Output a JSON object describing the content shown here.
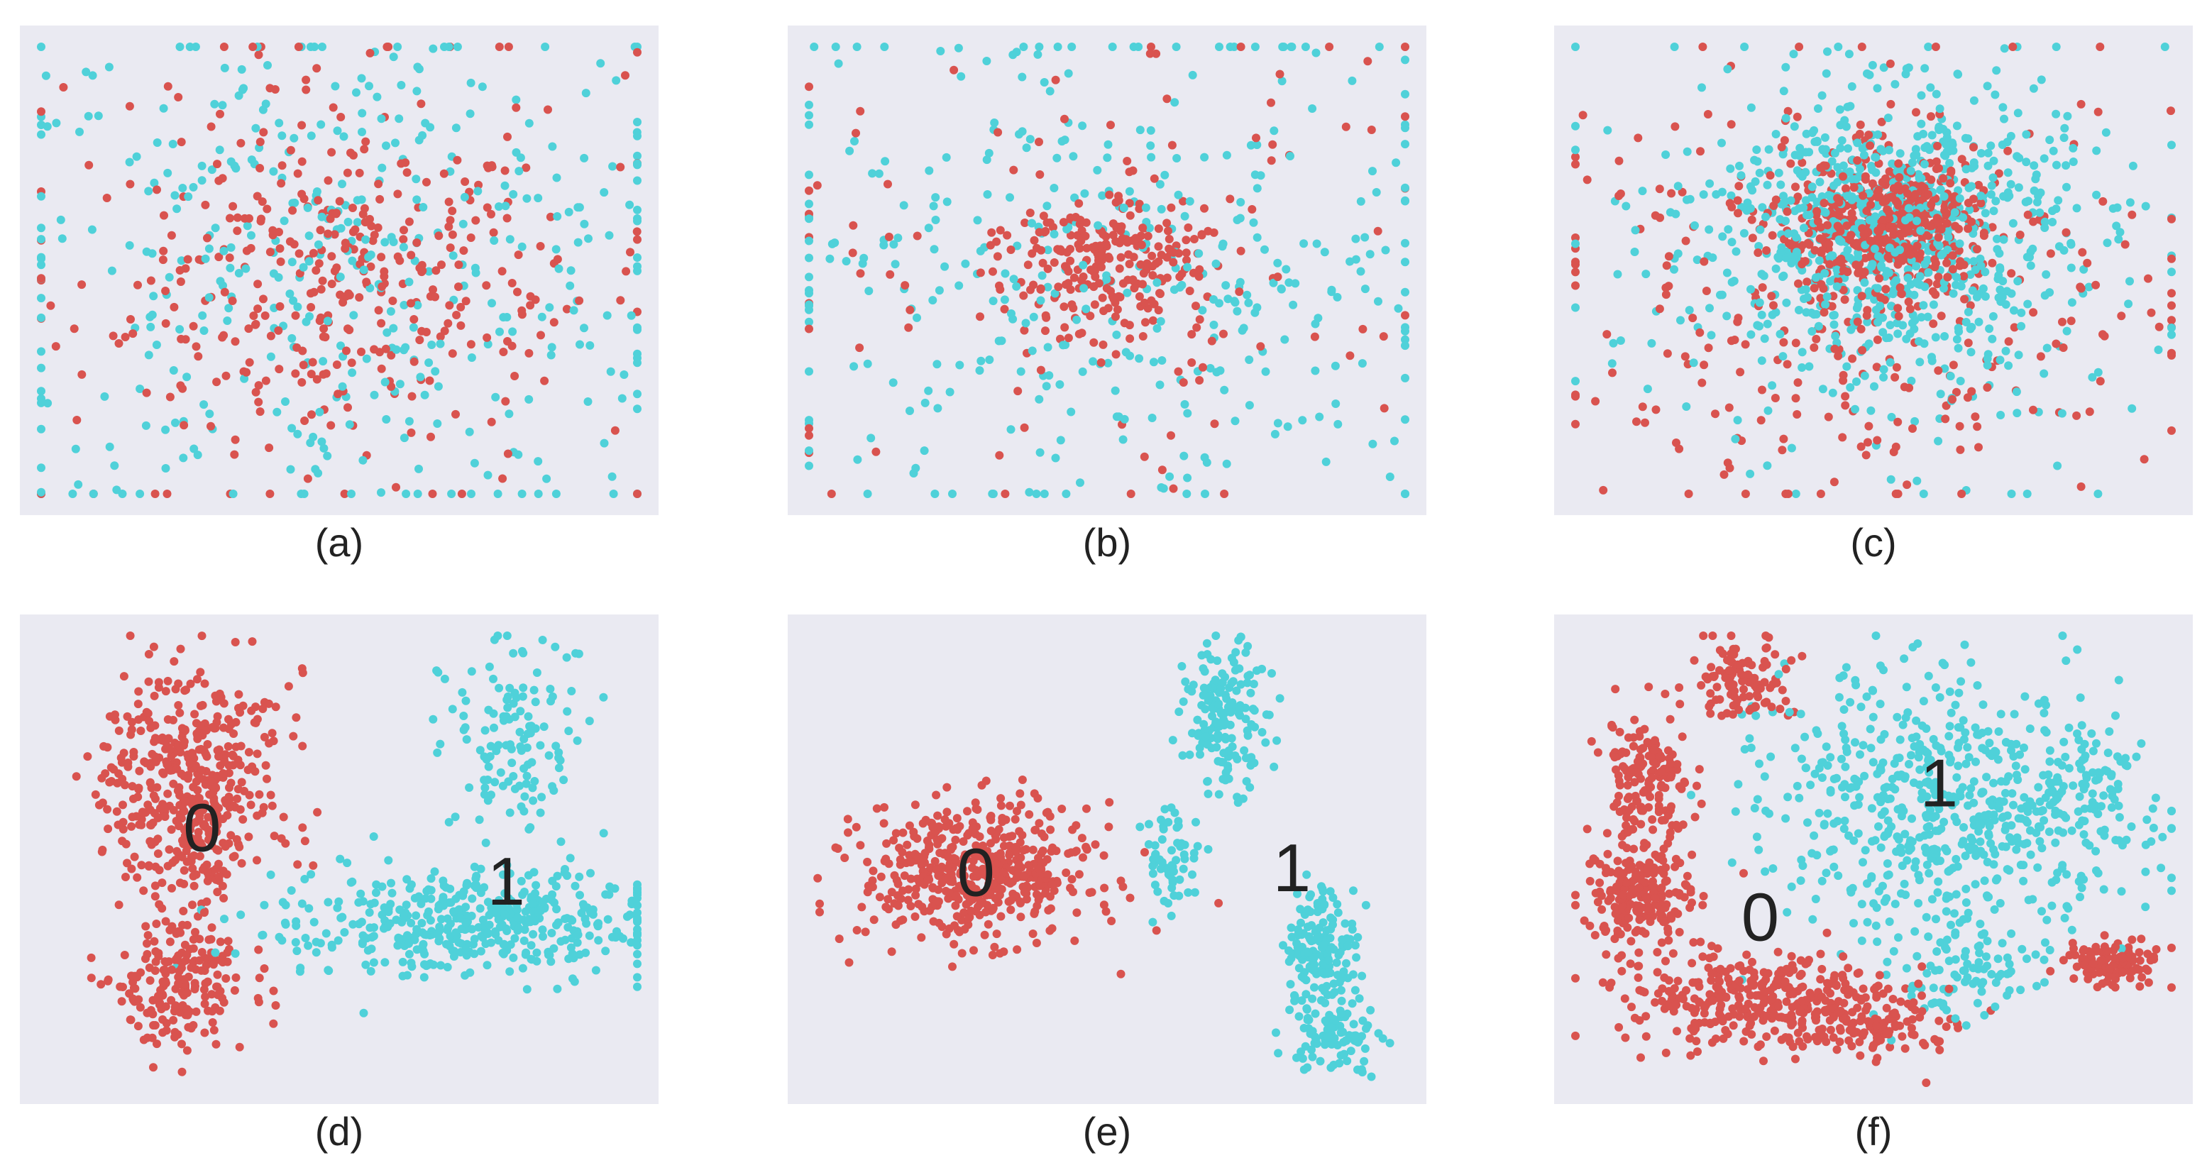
{
  "colors": {
    "class_0": "#d9534f",
    "class_1": "#4fd1d9",
    "panel_bg": "#eaeaf2"
  },
  "chart_data": [
    {
      "type": "scatter",
      "caption": "(a)",
      "xlim": [
        0,
        1
      ],
      "ylim": [
        0,
        1
      ],
      "grid": false,
      "axes_visible": false,
      "series": [
        {
          "class": "0",
          "color": "#d9534f",
          "clusters": [
            {
              "cx": 0.5,
              "cy": 0.48,
              "sx": 0.17,
              "sy": 0.17,
              "n": 230
            },
            {
              "cx": 0.5,
              "cy": 0.5,
              "sx": 0.3,
              "sy": 0.28,
              "n": 170
            }
          ]
        },
        {
          "class": "1",
          "color": "#4fd1d9",
          "clusters": [
            {
              "cx": 0.5,
              "cy": 0.5,
              "sx": 0.31,
              "sy": 0.3,
              "n": 420
            }
          ]
        }
      ],
      "labels": []
    },
    {
      "type": "scatter",
      "caption": "(b)",
      "xlim": [
        0,
        1
      ],
      "ylim": [
        0,
        1
      ],
      "grid": false,
      "axes_visible": false,
      "series": [
        {
          "class": "0",
          "color": "#d9534f",
          "clusters": [
            {
              "cx": 0.5,
              "cy": 0.52,
              "sx": 0.09,
              "sy": 0.08,
              "n": 220
            },
            {
              "cx": 0.5,
              "cy": 0.5,
              "sx": 0.28,
              "sy": 0.26,
              "n": 120
            }
          ]
        },
        {
          "class": "1",
          "color": "#4fd1d9",
          "clusters": [
            {
              "cx": 0.5,
              "cy": 0.5,
              "sx": 0.3,
              "sy": 0.29,
              "n": 380
            }
          ]
        }
      ],
      "labels": []
    },
    {
      "type": "scatter",
      "caption": "(c)",
      "xlim": [
        0,
        1
      ],
      "ylim": [
        0,
        1
      ],
      "grid": false,
      "axes_visible": false,
      "series": [
        {
          "class": "0",
          "color": "#d9534f",
          "clusters": [
            {
              "cx": 0.5,
              "cy": 0.58,
              "sx": 0.08,
              "sy": 0.08,
              "n": 350
            },
            {
              "cx": 0.58,
              "cy": 0.62,
              "sx": 0.05,
              "sy": 0.05,
              "n": 120
            },
            {
              "cx": 0.5,
              "cy": 0.45,
              "sx": 0.26,
              "sy": 0.24,
              "n": 320
            }
          ]
        },
        {
          "class": "1",
          "color": "#4fd1d9",
          "clusters": [
            {
              "cx": 0.52,
              "cy": 0.6,
              "sx": 0.15,
              "sy": 0.15,
              "n": 700
            },
            {
              "cx": 0.5,
              "cy": 0.5,
              "sx": 0.24,
              "sy": 0.24,
              "n": 200
            }
          ]
        }
      ],
      "labels": []
    },
    {
      "type": "scatter",
      "caption": "(d)",
      "xlim": [
        0,
        1
      ],
      "ylim": [
        0,
        1
      ],
      "grid": false,
      "axes_visible": false,
      "series": [
        {
          "class": "0",
          "color": "#d9534f",
          "clusters": [
            {
              "cx": 0.25,
              "cy": 0.66,
              "sx": 0.075,
              "sy": 0.13,
              "n": 480
            },
            {
              "cx": 0.23,
              "cy": 0.22,
              "sx": 0.055,
              "sy": 0.07,
              "n": 200
            }
          ]
        },
        {
          "class": "1",
          "color": "#4fd1d9",
          "clusters": [
            {
              "cx": 0.72,
              "cy": 0.36,
              "sx": 0.16,
              "sy": 0.06,
              "n": 450
            },
            {
              "cx": 0.8,
              "cy": 0.78,
              "sx": 0.06,
              "sy": 0.12,
              "n": 130
            }
          ]
        }
      ],
      "labels": [
        {
          "text": "0",
          "x": 0.27,
          "y": 0.57
        },
        {
          "text": "1",
          "x": 0.78,
          "y": 0.45
        }
      ]
    },
    {
      "type": "scatter",
      "caption": "(e)",
      "xlim": [
        0,
        1
      ],
      "ylim": [
        0,
        1
      ],
      "grid": false,
      "axes_visible": false,
      "series": [
        {
          "class": "0",
          "color": "#d9534f",
          "clusters": [
            {
              "cx": 0.28,
              "cy": 0.47,
              "sx": 0.095,
              "sy": 0.075,
              "n": 520
            }
          ]
        },
        {
          "class": "1",
          "color": "#4fd1d9",
          "clusters": [
            {
              "cx": 0.7,
              "cy": 0.82,
              "sx": 0.035,
              "sy": 0.08,
              "n": 160
            },
            {
              "cx": 0.61,
              "cy": 0.5,
              "sx": 0.025,
              "sy": 0.06,
              "n": 60
            },
            {
              "cx": 0.86,
              "cy": 0.3,
              "sx": 0.03,
              "sy": 0.07,
              "n": 170
            },
            {
              "cx": 0.88,
              "cy": 0.1,
              "sx": 0.04,
              "sy": 0.04,
              "n": 80
            }
          ]
        }
      ],
      "labels": [
        {
          "text": "0",
          "x": 0.28,
          "y": 0.47
        },
        {
          "text": "1",
          "x": 0.81,
          "y": 0.48
        }
      ]
    },
    {
      "type": "scatter",
      "caption": "(f)",
      "xlim": [
        0,
        1
      ],
      "ylim": [
        0,
        1
      ],
      "grid": false,
      "axes_visible": false,
      "series": [
        {
          "class": "0",
          "color": "#d9534f",
          "clusters": [
            {
              "cx": 0.28,
              "cy": 0.9,
              "sx": 0.04,
              "sy": 0.04,
              "n": 110
            },
            {
              "cx": 0.12,
              "cy": 0.68,
              "sx": 0.035,
              "sy": 0.08,
              "n": 160
            },
            {
              "cx": 0.11,
              "cy": 0.42,
              "sx": 0.045,
              "sy": 0.06,
              "n": 210
            },
            {
              "cx": 0.3,
              "cy": 0.19,
              "sx": 0.12,
              "sy": 0.05,
              "n": 320
            },
            {
              "cx": 0.5,
              "cy": 0.12,
              "sx": 0.08,
              "sy": 0.04,
              "n": 120
            },
            {
              "cx": 0.9,
              "cy": 0.27,
              "sx": 0.04,
              "sy": 0.025,
              "n": 120
            }
          ]
        },
        {
          "class": "1",
          "color": "#4fd1d9",
          "clusters": [
            {
              "cx": 0.62,
              "cy": 0.62,
              "sx": 0.15,
              "sy": 0.14,
              "n": 600
            },
            {
              "cx": 0.85,
              "cy": 0.65,
              "sx": 0.05,
              "sy": 0.07,
              "n": 80
            },
            {
              "cx": 0.65,
              "cy": 0.25,
              "sx": 0.07,
              "sy": 0.06,
              "n": 90
            }
          ]
        }
      ],
      "labels": [
        {
          "text": "0",
          "x": 0.31,
          "y": 0.37
        },
        {
          "text": "1",
          "x": 0.61,
          "y": 0.67
        }
      ]
    }
  ]
}
